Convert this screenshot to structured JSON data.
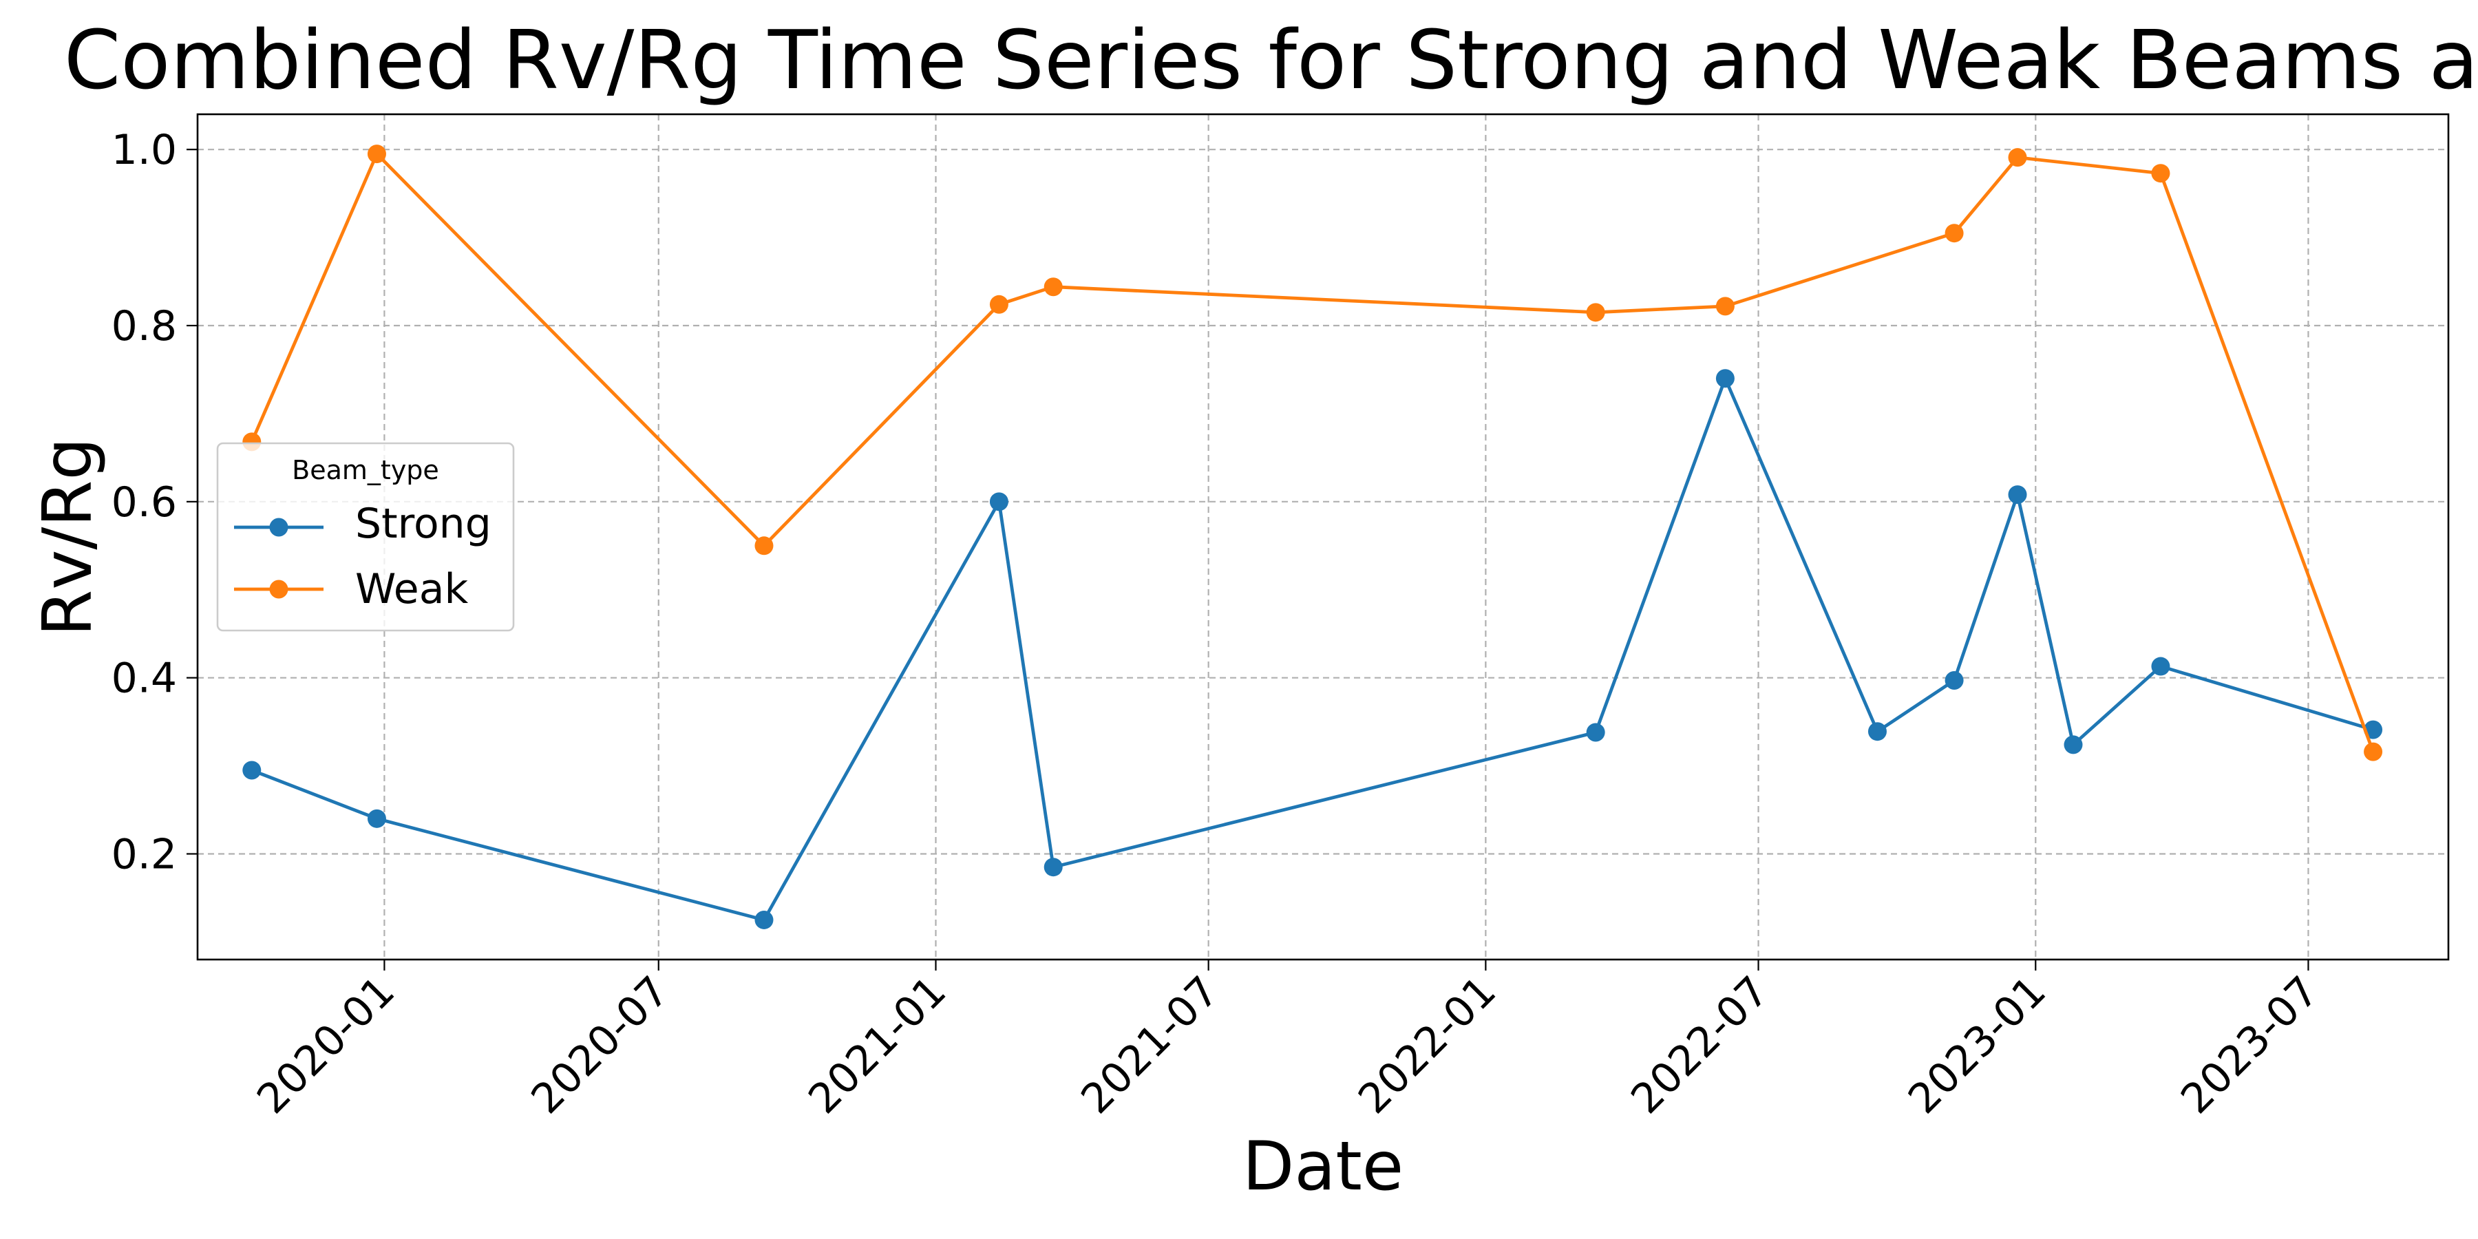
{
  "chart_data": {
    "type": "line",
    "title": "Combined Rv/Rg Time Series for Strong and Weak Beams at",
    "xlabel": "Date",
    "ylabel": "Rv/Rg",
    "x_axis_type": "date",
    "xlim": [
      "2019-08-30",
      "2023-10-02"
    ],
    "ylim": [
      0.08,
      1.04
    ],
    "x_ticks": [
      "2020-01",
      "2020-07",
      "2021-01",
      "2021-07",
      "2022-01",
      "2022-07",
      "2023-01",
      "2023-07"
    ],
    "y_ticks": [
      "0.2",
      "0.4",
      "0.6",
      "0.8",
      "1.0"
    ],
    "grid": true,
    "legend": {
      "title": "Beam_type",
      "placement": "center-left"
    },
    "series": [
      {
        "name": "Strong",
        "color": "#1f77b4",
        "x": [
          "2019-10-05",
          "2019-12-27",
          "2020-09-09",
          "2021-02-12",
          "2021-03-20",
          "2022-03-15",
          "2022-06-09",
          "2022-09-18",
          "2022-11-08",
          "2022-12-20",
          "2023-01-26",
          "2023-03-25",
          "2023-08-13"
        ],
        "y": [
          0.295,
          0.24,
          0.125,
          0.6,
          0.185,
          0.338,
          0.74,
          0.339,
          0.397,
          0.608,
          0.324,
          0.413,
          0.341
        ]
      },
      {
        "name": "Weak",
        "color": "#ff7f0e",
        "x": [
          "2019-10-05",
          "2019-12-27",
          "2020-09-09",
          "2021-02-12",
          "2021-03-20",
          "2022-03-15",
          "2022-06-09",
          "2022-11-08",
          "2022-12-20",
          "2023-03-25",
          "2023-08-13"
        ],
        "y": [
          0.668,
          0.995,
          0.55,
          0.824,
          0.844,
          0.815,
          0.822,
          0.905,
          0.991,
          0.973,
          0.316
        ]
      }
    ]
  }
}
